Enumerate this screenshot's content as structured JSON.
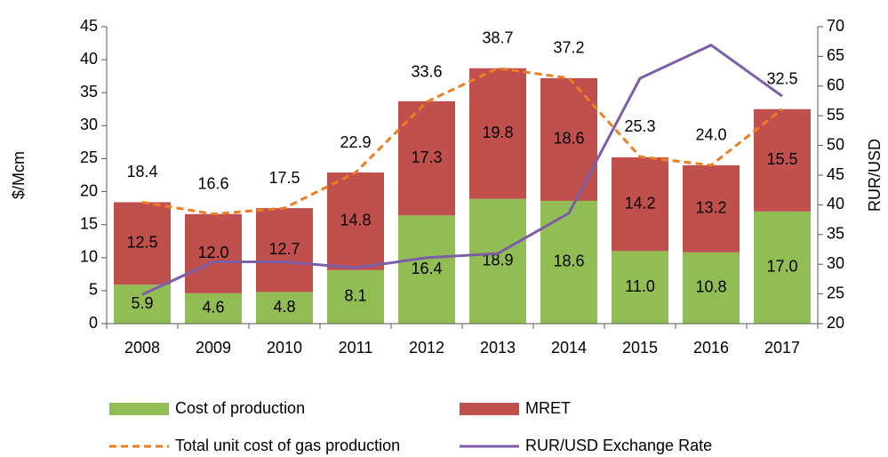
{
  "chart_data": {
    "type": "bar",
    "y_label": "$/Mcm",
    "y2_label": "RUR/USD",
    "categories": [
      "2008",
      "2009",
      "2010",
      "2011",
      "2012",
      "2013",
      "2014",
      "2015",
      "2016",
      "2017"
    ],
    "series": [
      {
        "name": "Cost of production",
        "type": "bar",
        "color": "#92bd54",
        "values": [
          5.9,
          4.6,
          4.8,
          8.1,
          16.4,
          18.9,
          18.6,
          11,
          10.8,
          17
        ],
        "value_labels": [
          "5.9",
          "4.6",
          "4.8",
          "8.1",
          "16.4",
          "18.9",
          "18.6",
          "11.0",
          "10.8",
          "17.0"
        ]
      },
      {
        "name": "MRET",
        "type": "bar",
        "color": "#c0504d",
        "values": [
          12.5,
          12,
          12.7,
          14.8,
          17.3,
          19.8,
          18.6,
          14.2,
          13.2,
          15.5
        ],
        "value_labels": [
          "12.5",
          "12.0",
          "12.7",
          "14.8",
          "17.3",
          "19.8",
          "18.6",
          "14.2",
          "13.2",
          "15.5"
        ]
      },
      {
        "name": "Total unit cost of gas production",
        "type": "line",
        "dashed": true,
        "color": "#f07c22",
        "values": [
          18.4,
          16.6,
          17.5,
          22.9,
          33.6,
          38.7,
          37.2,
          25.3,
          24,
          32.5
        ],
        "value_labels": [
          "18.4",
          "16.6",
          "17.5",
          "22.9",
          "33.6",
          "38.7",
          "37.2",
          "25.3",
          "24.0",
          "32.5"
        ]
      },
      {
        "name": "RUR/USD Exchange Rate",
        "type": "line",
        "axis": "y2",
        "color": "#7b5ea7",
        "values": [
          24.9,
          30.4,
          30.4,
          29.4,
          31.1,
          31.8,
          38.6,
          61.3,
          66.9,
          58.3
        ]
      }
    ],
    "ylim": [
      0,
      45
    ],
    "yticks": [
      0,
      5,
      10,
      15,
      20,
      25,
      30,
      35,
      40,
      45
    ],
    "y2lim": [
      20,
      70
    ],
    "y2ticks": [
      20,
      25,
      30,
      35,
      40,
      45,
      50,
      55,
      60,
      65,
      70
    ]
  }
}
